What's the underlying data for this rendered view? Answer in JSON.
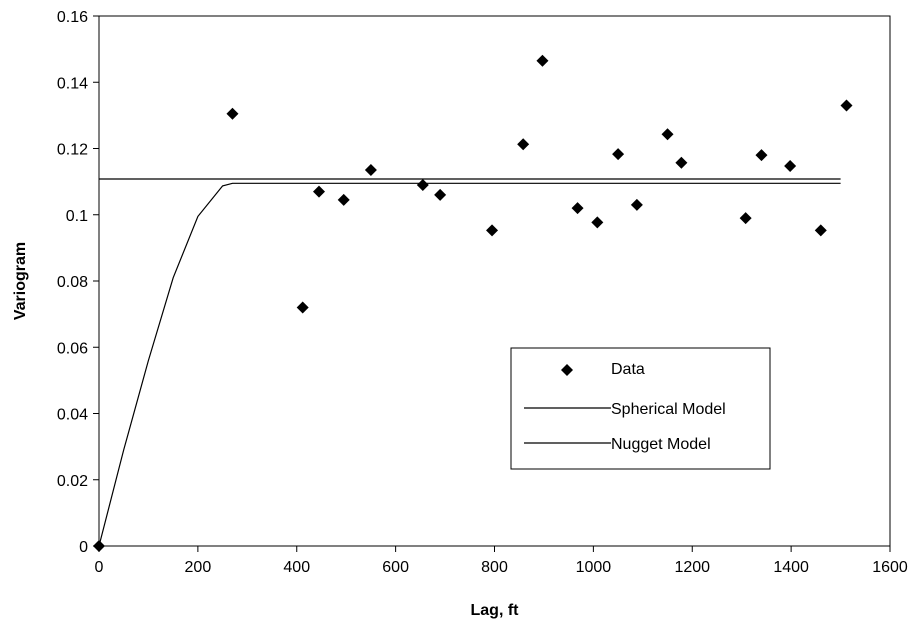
{
  "chart_data": {
    "type": "scatter",
    "title": "",
    "xlabel": "Lag, ft",
    "ylabel": "Variogram",
    "xlim": [
      0,
      1600
    ],
    "ylim": [
      0,
      0.16
    ],
    "x_ticks": [
      "0",
      "200",
      "400",
      "600",
      "800",
      "1000",
      "1200",
      "1400",
      "1600"
    ],
    "y_ticks": [
      "0",
      "0.02",
      "0.04",
      "0.06",
      "0.08",
      "0.1",
      "0.12",
      "0.14",
      "0.16"
    ],
    "grid": false,
    "legend_position": "lower-right",
    "series": [
      {
        "name": "Data",
        "kind": "scatter",
        "marker": "diamond",
        "color": "#000000",
        "x": [
          0,
          270,
          412,
          445,
          495,
          550,
          655,
          690,
          795,
          858,
          897,
          968,
          1008,
          1050,
          1088,
          1150,
          1178,
          1308,
          1340,
          1398,
          1460,
          1512
        ],
        "y": [
          0,
          0.1305,
          0.072,
          0.107,
          0.1045,
          0.1135,
          0.109,
          0.106,
          0.0953,
          0.1213,
          0.1465,
          0.102,
          0.0977,
          0.1183,
          0.103,
          0.1243,
          0.1157,
          0.099,
          0.118,
          0.1147,
          0.0953,
          0.133
        ]
      },
      {
        "name": "Spherical Model",
        "kind": "line",
        "color": "#000000",
        "x": [
          0,
          50,
          100,
          150,
          200,
          250,
          270,
          300,
          1500
        ],
        "y": [
          0,
          0.029,
          0.056,
          0.081,
          0.0995,
          0.1087,
          0.1095,
          0.1095,
          0.1095
        ]
      },
      {
        "name": "Nugget Model",
        "kind": "line",
        "color": "#000000",
        "x": [
          0,
          1500
        ],
        "y": [
          0.1108,
          0.1108
        ]
      }
    ]
  }
}
